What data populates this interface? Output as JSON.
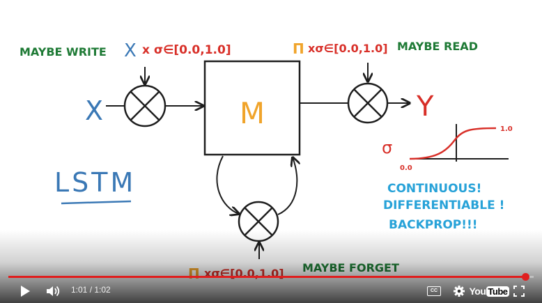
{
  "whiteboard": {
    "maybe_write": "MAYBE WRITE",
    "write_x": "X",
    "write_formula": "x σ∈[0.0,1.0]",
    "read_pi": "Π",
    "read_formula": "xσ∈[0.0,1.0]",
    "maybe_read": "MAYBE READ",
    "input_x": "X",
    "memory": "M",
    "output_y": "Y",
    "sigma": "σ",
    "sigma_zero": "0.0",
    "sigma_one": "1.0",
    "lstm": "LSTM",
    "note_line1": "CONTINUOUS!",
    "note_line2": "DIFFERENTIABLE !",
    "note_line3": "BACKPROP!!!",
    "forget_pi": "Π",
    "forget_formula": "xσ∈[0.0,1.0]",
    "maybe_forget": "MAYBE FORGET"
  },
  "colors": {
    "green": "#1e7a35",
    "blue": "#3a78b5",
    "red": "#d82f28",
    "orange": "#f0a42b",
    "cyan": "#27a2d8",
    "ink": "#1d1d1d",
    "progress": "#e01e1e"
  },
  "player": {
    "progress": 0.984,
    "time_current": "1:01",
    "time_total": "1:02",
    "time_display": "1:01 / 1:02",
    "icons": {
      "play": "play-icon",
      "volume": "volume-icon",
      "captions": "captions-icon",
      "settings": "gear-icon",
      "logo": "youtube-logo",
      "fullscreen": "fullscreen-icon"
    },
    "cc_label": "CC",
    "logo_you": "You",
    "logo_tube": "Tube"
  }
}
